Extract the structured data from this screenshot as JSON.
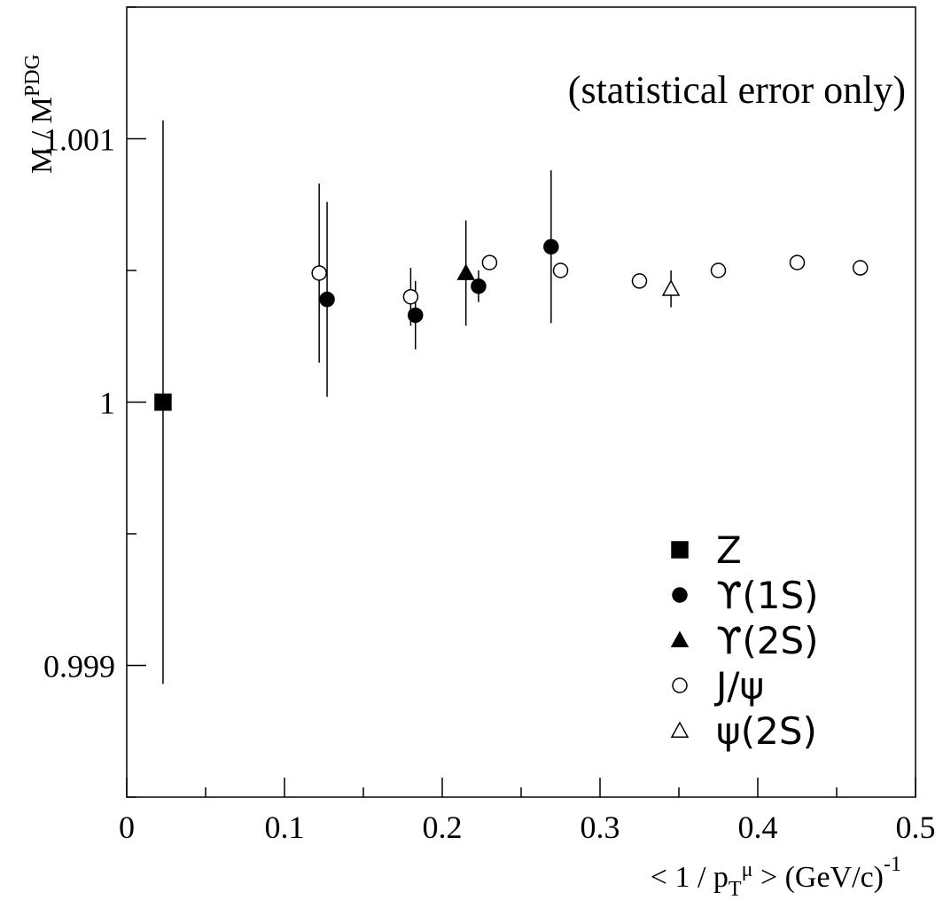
{
  "chart_data": {
    "type": "scatter",
    "annotation": "(statistical error only)",
    "ylabel": {
      "main": "M / M",
      "sup": "PDG"
    },
    "xlabel": {
      "pre": "< 1 / p",
      "sub": "T",
      "sup1": "μ",
      "post": " >  (GeV/c)",
      "sup2": "-1"
    },
    "xlim": [
      0,
      0.5
    ],
    "ylim": [
      0.9985,
      1.0015
    ],
    "x_ticks": [
      {
        "v": 0,
        "label": "0"
      },
      {
        "v": 0.1,
        "label": "0.1"
      },
      {
        "v": 0.2,
        "label": "0.2"
      },
      {
        "v": 0.3,
        "label": "0.3"
      },
      {
        "v": 0.4,
        "label": "0.4"
      },
      {
        "v": 0.5,
        "label": "0.5"
      }
    ],
    "y_ticks": [
      {
        "v": 0.999,
        "label": "0.999"
      },
      {
        "v": 1.0,
        "label": "1"
      },
      {
        "v": 1.001,
        "label": "1.001"
      }
    ],
    "series": [
      {
        "name": "Z",
        "marker": "square-filled",
        "points": [
          {
            "x": 0.023,
            "y": 1.0,
            "err": 0.00107
          }
        ]
      },
      {
        "name": "ϒ(1S)",
        "marker": "circle-filled",
        "points": [
          {
            "x": 0.127,
            "y": 1.00039,
            "err": 0.00037
          },
          {
            "x": 0.183,
            "y": 1.00033,
            "err": 0.00013
          },
          {
            "x": 0.223,
            "y": 1.00044,
            "err": 6e-05
          },
          {
            "x": 0.269,
            "y": 1.00059,
            "err": 0.00029
          }
        ]
      },
      {
        "name": "ϒ(2S)",
        "marker": "triangle-filled",
        "points": [
          {
            "x": 0.215,
            "y": 1.00049,
            "err": 0.0002
          }
        ]
      },
      {
        "name": "J/ψ",
        "marker": "circle-open",
        "points": [
          {
            "x": 0.122,
            "y": 1.00049,
            "err": 0.00034
          },
          {
            "x": 0.18,
            "y": 1.0004,
            "err": 0.00011
          },
          {
            "x": 0.23,
            "y": 1.00053,
            "err": 2e-05
          },
          {
            "x": 0.275,
            "y": 1.0005,
            "err": 2e-05
          },
          {
            "x": 0.325,
            "y": 1.00046,
            "err": 1e-05
          },
          {
            "x": 0.375,
            "y": 1.0005,
            "err": 1e-05
          },
          {
            "x": 0.425,
            "y": 1.00053,
            "err": 1e-05
          },
          {
            "x": 0.465,
            "y": 1.00051,
            "err": 3e-05
          }
        ]
      },
      {
        "name": "ψ(2S)",
        "marker": "triangle-open",
        "points": [
          {
            "x": 0.345,
            "y": 1.00043,
            "err": 7e-05
          }
        ]
      }
    ],
    "legend": {
      "placement": "bottom-right"
    }
  }
}
